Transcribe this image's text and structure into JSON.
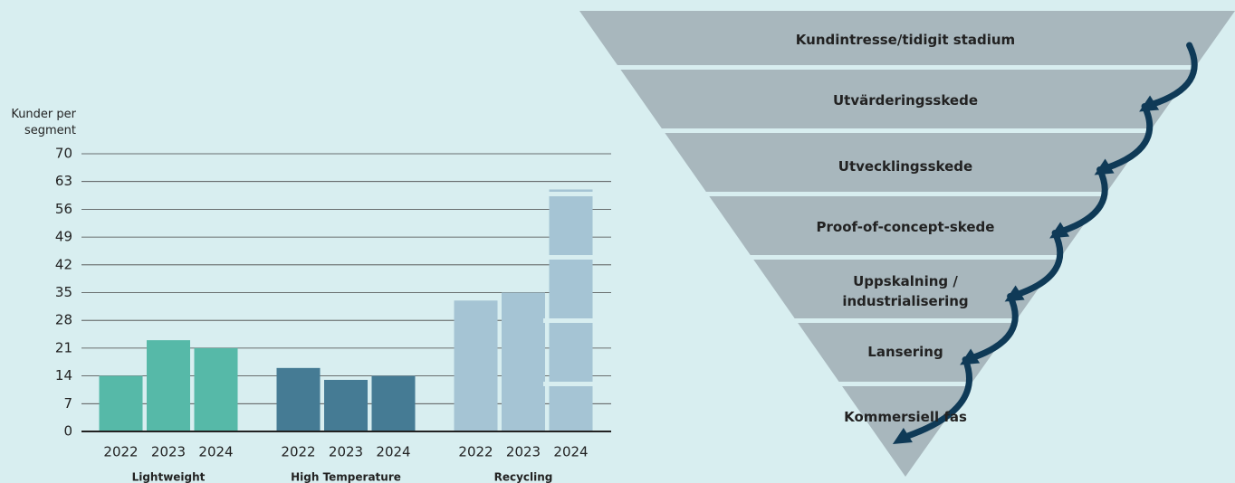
{
  "chart_data": {
    "type": "bar",
    "y_label": "Kunder per segment",
    "groups": [
      {
        "name": "Lightweight",
        "color": "#56b9a8",
        "categories": [
          "2022",
          "2023",
          "2024"
        ],
        "values": [
          14,
          23,
          21
        ]
      },
      {
        "name": "High Temperature",
        "color": "#457b94",
        "categories": [
          "2022",
          "2023",
          "2024"
        ],
        "values": [
          16,
          13,
          14
        ]
      },
      {
        "name": "Recycling",
        "color": "#a5c4d4",
        "categories": [
          "2022",
          "2023",
          "2024"
        ],
        "values": [
          33,
          35,
          61
        ]
      }
    ],
    "ylim": [
      0,
      70
    ],
    "yticks": [
      0,
      7,
      14,
      21,
      28,
      35,
      42,
      49,
      56,
      63,
      70
    ],
    "grid": true
  },
  "funnel": {
    "stages": [
      "Kundintresse/tidigit stadium",
      "Utvärderingsskede",
      "Utvecklingsskede",
      "Proof-of-concept-skede",
      "Uppskalning / industrialisering",
      "Lansering",
      "Kommersiell fas"
    ]
  }
}
